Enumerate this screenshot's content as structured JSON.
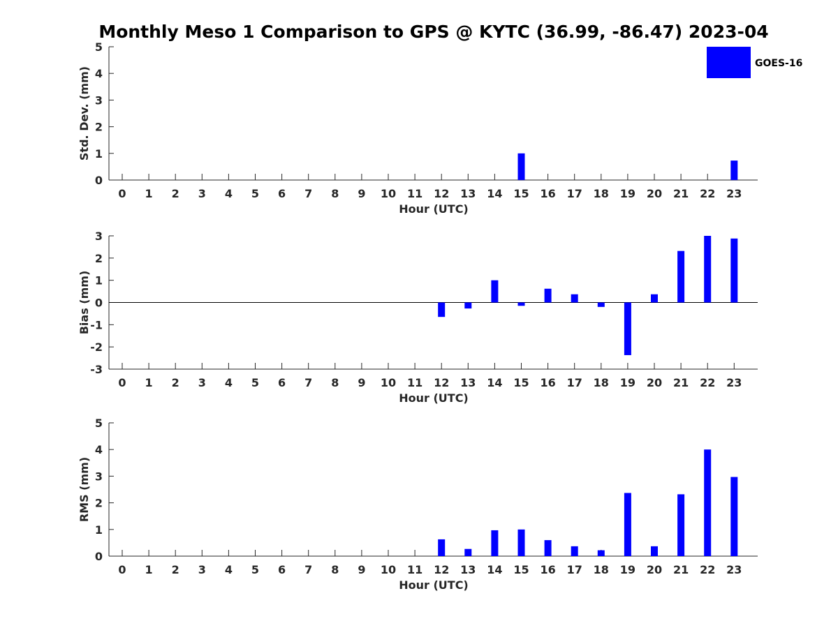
{
  "title": "Monthly Meso 1 Comparison to GPS @ KYTC (36.99, -86.47) 2023-04",
  "legend": {
    "label": "GOES-16",
    "color": "#0000ff",
    "placement": "top-right"
  },
  "chart_data": [
    {
      "type": "bar",
      "xlabel": "Hour (UTC)",
      "ylabel": "Std. Dev. (mm)",
      "ylim": [
        0,
        5
      ],
      "yticks": [
        "0",
        "1",
        "2",
        "3",
        "4",
        "5"
      ],
      "categories": [
        "0",
        "1",
        "2",
        "3",
        "4",
        "5",
        "6",
        "7",
        "8",
        "9",
        "10",
        "11",
        "12",
        "13",
        "14",
        "15",
        "16",
        "17",
        "18",
        "19",
        "20",
        "21",
        "22",
        "23"
      ],
      "series": [
        {
          "name": "GOES-16",
          "color": "#0000ff",
          "values": [
            null,
            null,
            null,
            null,
            null,
            null,
            null,
            null,
            null,
            null,
            null,
            null,
            null,
            null,
            null,
            1.0,
            null,
            null,
            null,
            null,
            null,
            null,
            null,
            0.73
          ]
        }
      ],
      "zero_line": false
    },
    {
      "type": "bar",
      "xlabel": "Hour (UTC)",
      "ylabel": "Bias (mm)",
      "ylim": [
        -3,
        3
      ],
      "yticks": [
        "-3",
        "-2",
        "-1",
        "0",
        "1",
        "2",
        "3"
      ],
      "categories": [
        "0",
        "1",
        "2",
        "3",
        "4",
        "5",
        "6",
        "7",
        "8",
        "9",
        "10",
        "11",
        "12",
        "13",
        "14",
        "15",
        "16",
        "17",
        "18",
        "19",
        "20",
        "21",
        "22",
        "23"
      ],
      "series": [
        {
          "name": "GOES-16",
          "color": "#0000ff",
          "values": [
            null,
            null,
            null,
            null,
            null,
            null,
            null,
            null,
            null,
            null,
            null,
            null,
            -0.65,
            -0.27,
            1.0,
            -0.15,
            0.62,
            0.37,
            -0.2,
            -2.37,
            0.37,
            2.32,
            3.0,
            2.88
          ]
        }
      ],
      "zero_line": true
    },
    {
      "type": "bar",
      "xlabel": "Hour (UTC)",
      "ylabel": "RMS (mm)",
      "ylim": [
        0,
        5
      ],
      "yticks": [
        "0",
        "1",
        "2",
        "3",
        "4",
        "5"
      ],
      "categories": [
        "0",
        "1",
        "2",
        "3",
        "4",
        "5",
        "6",
        "7",
        "8",
        "9",
        "10",
        "11",
        "12",
        "13",
        "14",
        "15",
        "16",
        "17",
        "18",
        "19",
        "20",
        "21",
        "22",
        "23"
      ],
      "series": [
        {
          "name": "GOES-16",
          "color": "#0000ff",
          "values": [
            null,
            null,
            null,
            null,
            null,
            null,
            null,
            null,
            null,
            null,
            null,
            null,
            0.63,
            0.27,
            0.97,
            1.0,
            0.6,
            0.37,
            0.22,
            2.37,
            0.37,
            2.32,
            4.0,
            2.97
          ]
        }
      ],
      "zero_line": false
    }
  ]
}
